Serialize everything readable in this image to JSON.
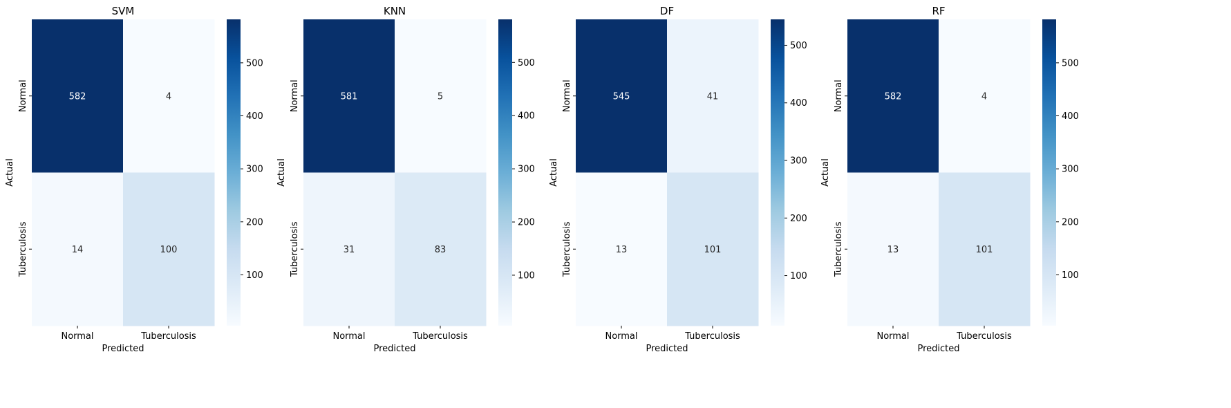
{
  "chart_data": [
    {
      "type": "heatmap",
      "title": "SVM",
      "xlabel": "Predicted",
      "ylabel": "Actual",
      "x_categories": [
        "Normal",
        "Tuberculosis"
      ],
      "y_categories": [
        "Normal",
        "Tuberculosis"
      ],
      "matrix": [
        [
          582,
          4
        ],
        [
          14,
          100
        ]
      ],
      "colormap": "Blues",
      "colorbar_range": [
        4,
        582
      ],
      "colorbar_ticks": [
        100,
        200,
        300,
        400,
        500
      ]
    },
    {
      "type": "heatmap",
      "title": "KNN",
      "xlabel": "Predicted",
      "ylabel": "Actual",
      "x_categories": [
        "Normal",
        "Tuberculosis"
      ],
      "y_categories": [
        "Normal",
        "Tuberculosis"
      ],
      "matrix": [
        [
          581,
          5
        ],
        [
          31,
          83
        ]
      ],
      "colormap": "Blues",
      "colorbar_range": [
        5,
        581
      ],
      "colorbar_ticks": [
        100,
        200,
        300,
        400,
        500
      ]
    },
    {
      "type": "heatmap",
      "title": "DF",
      "xlabel": "Predicted",
      "ylabel": "Actual",
      "x_categories": [
        "Normal",
        "Tuberculosis"
      ],
      "y_categories": [
        "Normal",
        "Tuberculosis"
      ],
      "matrix": [
        [
          545,
          41
        ],
        [
          13,
          101
        ]
      ],
      "colormap": "Blues",
      "colorbar_range": [
        13,
        545
      ],
      "colorbar_ticks": [
        100,
        200,
        300,
        400,
        500
      ]
    },
    {
      "type": "heatmap",
      "title": "RF",
      "xlabel": "Predicted",
      "ylabel": "Actual",
      "x_categories": [
        "Normal",
        "Tuberculosis"
      ],
      "y_categories": [
        "Normal",
        "Tuberculosis"
      ],
      "matrix": [
        [
          582,
          4
        ],
        [
          13,
          101
        ]
      ],
      "colormap": "Blues",
      "colorbar_range": [
        4,
        582
      ],
      "colorbar_ticks": [
        100,
        200,
        300,
        400,
        500
      ]
    }
  ],
  "colors": {
    "blues_stops": [
      "#f7fbff",
      "#deebf7",
      "#c6dbef",
      "#9ecae1",
      "#6baed6",
      "#4292c6",
      "#2171b5",
      "#08519c",
      "#08306b"
    ],
    "text_dark": "#262626",
    "text_light": "#ffffff",
    "axis": "#000000"
  }
}
